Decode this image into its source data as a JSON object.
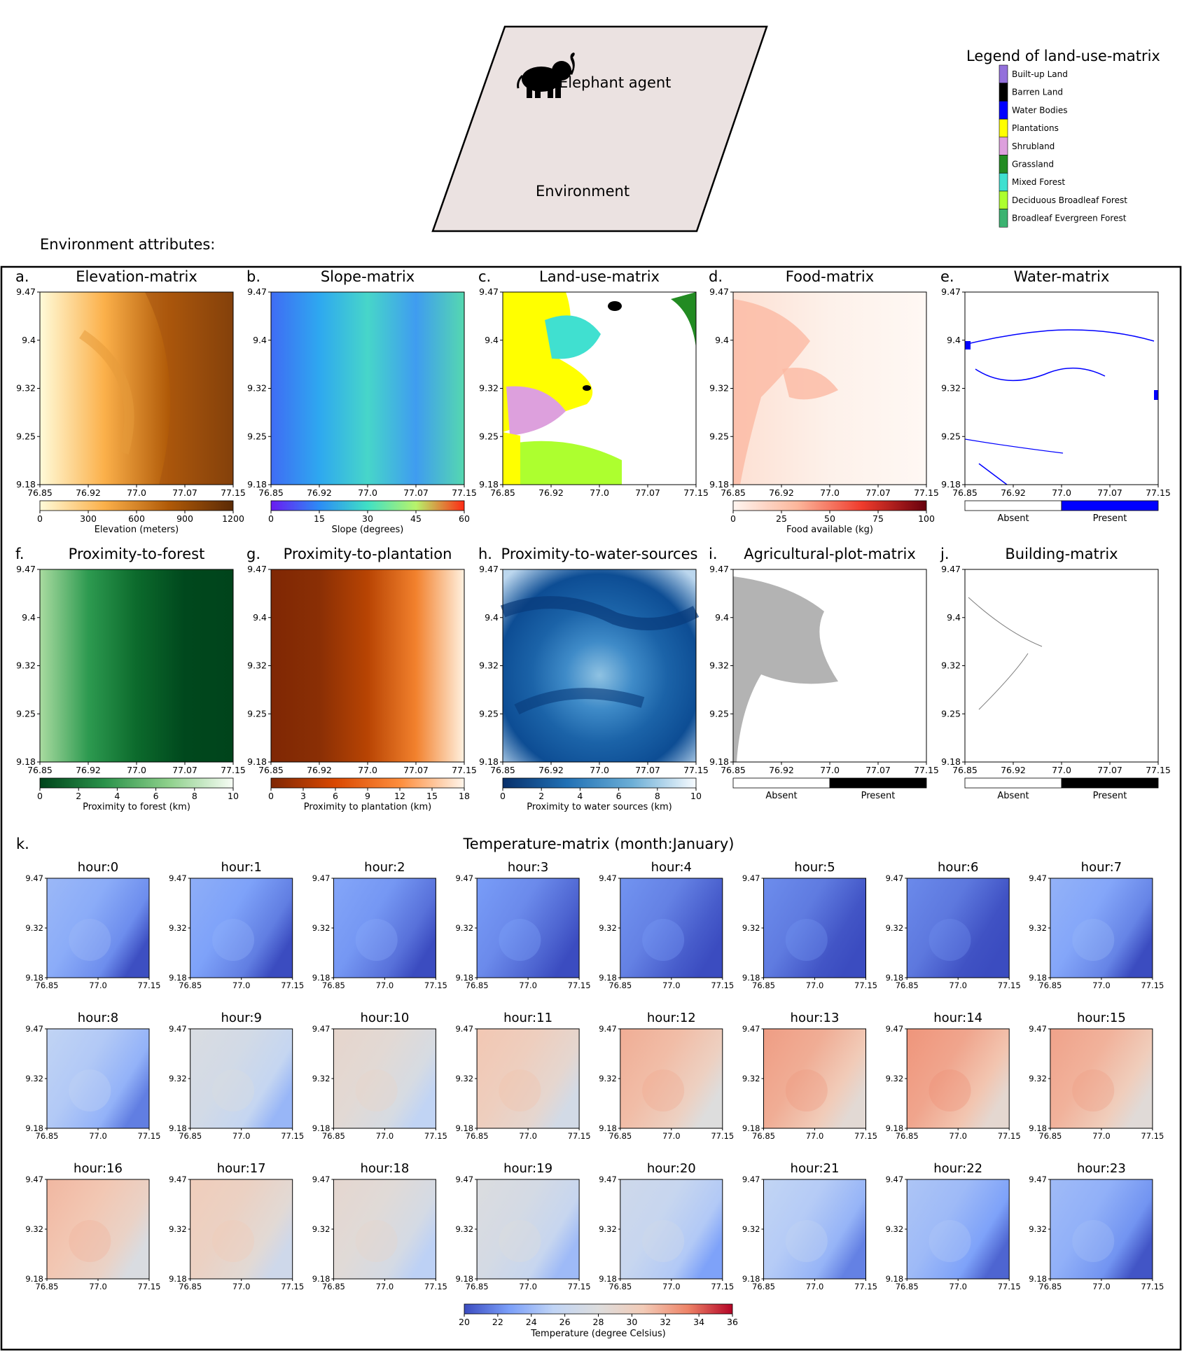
{
  "header": {
    "agent_label": "Elephant agent",
    "environment_label": "Environment",
    "attributes_label": "Environment attributes:"
  },
  "legend": {
    "title": "Legend of land-use-matrix",
    "items": [
      {
        "label": "Built-up Land",
        "color": "#9370db"
      },
      {
        "label": "Barren Land",
        "color": "#000000"
      },
      {
        "label": "Water Bodies",
        "color": "#0000ff"
      },
      {
        "label": "Plantations",
        "color": "#ffff00"
      },
      {
        "label": "Shrubland",
        "color": "#dda0dd"
      },
      {
        "label": "Grassland",
        "color": "#228b22"
      },
      {
        "label": "Mixed Forest",
        "color": "#40e0d0"
      },
      {
        "label": "Deciduous Broadleaf Forest",
        "color": "#adff2f"
      },
      {
        "label": "Broadleaf Evergreen Forest",
        "color": "#3cb371"
      }
    ]
  },
  "axes": {
    "x_ticks": [
      "76.85",
      "76.92",
      "77.0",
      "77.07",
      "77.15"
    ],
    "y_ticks": [
      "9.47",
      "9.4",
      "9.32",
      "9.25",
      "9.18"
    ],
    "small_x_ticks": [
      "76.85",
      "77.0",
      "77.15"
    ],
    "small_y_ticks": [
      "9.47",
      "9.32",
      "9.18"
    ]
  },
  "panels": [
    {
      "letter": "a.",
      "title": "Elevation-matrix",
      "colorbar_label": "Elevation (meters)",
      "colorbar_ticks": [
        "0",
        "300",
        "600",
        "900",
        "1200"
      ],
      "colors": [
        "#fffbd9",
        "#fbb04a",
        "#b05a08",
        "#5b2a05"
      ]
    },
    {
      "letter": "b.",
      "title": "Slope-matrix",
      "colorbar_label": "Slope (degrees)",
      "colorbar_ticks": [
        "0",
        "15",
        "30",
        "45",
        "60"
      ],
      "colors": [
        "#6a1bf2",
        "#2c8cf5",
        "#40e0c5",
        "#b7f36b",
        "#fe2a14"
      ]
    },
    {
      "letter": "c.",
      "title": "Land-use-matrix",
      "colors": [
        "#3cb371",
        "#ffff00",
        "#40e0d0",
        "#adff2f",
        "#dda0dd"
      ]
    },
    {
      "letter": "d.",
      "title": "Food-matrix",
      "colorbar_label": "Food available (kg)",
      "colorbar_ticks": [
        "0",
        "25",
        "50",
        "75",
        "100"
      ],
      "colors": [
        "#fff5f0",
        "#fcb69b",
        "#ef3b2c",
        "#67000d"
      ]
    },
    {
      "letter": "e.",
      "title": "Water-matrix",
      "colorbar_categories": [
        "Absent",
        "Present"
      ],
      "colors": [
        "#ffffff",
        "#0000ff"
      ]
    },
    {
      "letter": "f.",
      "title": "Proximity-to-forest",
      "colorbar_label": "Proximity to forest (km)",
      "colorbar_ticks": [
        "0",
        "2",
        "4",
        "6",
        "8",
        "10"
      ],
      "colors": [
        "#00441b",
        "#2a924a",
        "#8ed08b",
        "#f7fcf5"
      ]
    },
    {
      "letter": "g.",
      "title": "Proximity-to-plantation",
      "colorbar_label": "Proximity to plantation (km)",
      "colorbar_ticks": [
        "0",
        "3",
        "6",
        "9",
        "12",
        "15",
        "18"
      ],
      "colors": [
        "#7f2704",
        "#d94801",
        "#fd8d3c",
        "#fff5eb"
      ]
    },
    {
      "letter": "h.",
      "title": "Proximity-to-water-sources",
      "colorbar_label": "Proximity to water sources (km)",
      "colorbar_ticks": [
        "0",
        "2",
        "4",
        "6",
        "8",
        "10"
      ],
      "colors": [
        "#08306b",
        "#2171b5",
        "#6baed6",
        "#f7fbff"
      ]
    },
    {
      "letter": "i.",
      "title": "Agricultural-plot-matrix",
      "colorbar_categories": [
        "Absent",
        "Present"
      ],
      "colors": [
        "#ffffff",
        "#000000"
      ]
    },
    {
      "letter": "j.",
      "title": "Building-matrix",
      "colorbar_categories": [
        "Absent",
        "Present"
      ],
      "colors": [
        "#ffffff",
        "#000000"
      ]
    }
  ],
  "temperature": {
    "letter": "k.",
    "title": "Temperature-matrix (month:January)",
    "hour_labels": [
      "hour:0",
      "hour:1",
      "hour:2",
      "hour:3",
      "hour:4",
      "hour:5",
      "hour:6",
      "hour:7",
      "hour:8",
      "hour:9",
      "hour:10",
      "hour:11",
      "hour:12",
      "hour:13",
      "hour:14",
      "hour:15",
      "hour:16",
      "hour:17",
      "hour:18",
      "hour:19",
      "hour:20",
      "hour:21",
      "hour:22",
      "hour:23"
    ],
    "hour_mean_temps": [
      23.3,
      22.8,
      22.4,
      22.0,
      21.7,
      21.5,
      21.4,
      23.0,
      24.8,
      27.0,
      28.6,
      30.2,
      31.2,
      31.8,
      32.1,
      31.6,
      30.8,
      29.8,
      28.4,
      27.2,
      26.0,
      24.9,
      24.0,
      23.5
    ],
    "colorbar_label": "Temperature (degree Celsius)",
    "colorbar_ticks": [
      "20",
      "22",
      "24",
      "26",
      "28",
      "30",
      "32",
      "34",
      "36"
    ],
    "colorbar_range": [
      20,
      36
    ],
    "colors": [
      "#3b4cc0",
      "#7b9ff9",
      "#c0d4f5",
      "#dddddd",
      "#f2cbb7",
      "#ee8468",
      "#b40426"
    ]
  }
}
